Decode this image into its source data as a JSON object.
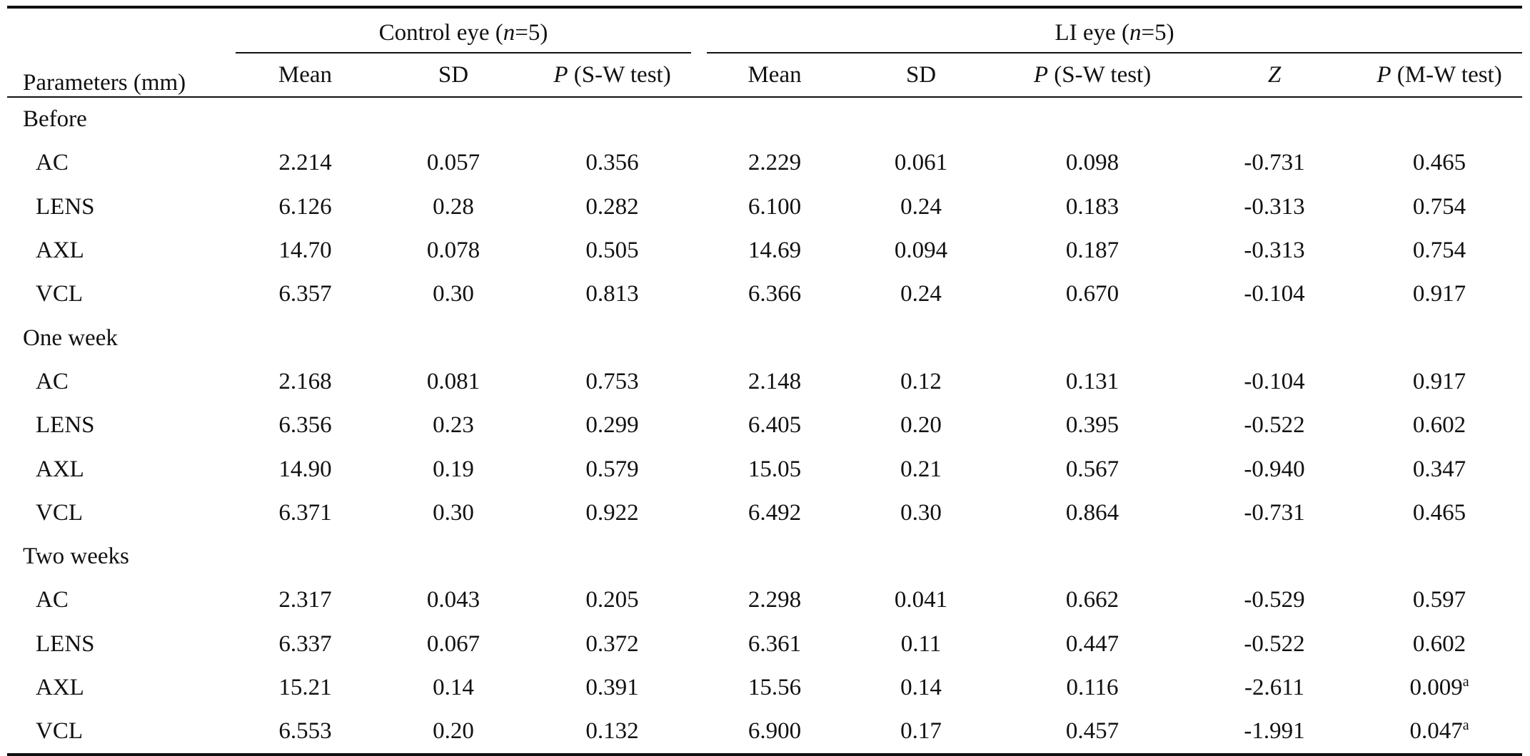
{
  "header": {
    "parameters": "Parameters (mm)",
    "control_prefix": "Control eye (",
    "control_n": "n",
    "control_suffix": "=5)",
    "li_prefix": "LI eye (",
    "li_n": "n",
    "li_suffix": "=5)",
    "columns": {
      "mean": "Mean",
      "sd": "SD",
      "p_letter": "P",
      "sw_test": " (S-W test)",
      "z": "Z",
      "mw_test": " (M-W test)"
    }
  },
  "sections": [
    {
      "title": "Before",
      "rows": [
        {
          "param": "AC",
          "c_mean": "2.214",
          "c_sd": "0.057",
          "c_p": "0.356",
          "l_mean": "2.229",
          "l_sd": "0.061",
          "l_p": "0.098",
          "z": "-0.731",
          "p_mw": "0.465",
          "sup": ""
        },
        {
          "param": "LENS",
          "c_mean": "6.126",
          "c_sd": "0.28",
          "c_p": "0.282",
          "l_mean": "6.100",
          "l_sd": "0.24",
          "l_p": "0.183",
          "z": "-0.313",
          "p_mw": "0.754",
          "sup": ""
        },
        {
          "param": "AXL",
          "c_mean": "14.70",
          "c_sd": "0.078",
          "c_p": "0.505",
          "l_mean": "14.69",
          "l_sd": "0.094",
          "l_p": "0.187",
          "z": "-0.313",
          "p_mw": "0.754",
          "sup": ""
        },
        {
          "param": "VCL",
          "c_mean": "6.357",
          "c_sd": "0.30",
          "c_p": "0.813",
          "l_mean": "6.366",
          "l_sd": "0.24",
          "l_p": "0.670",
          "z": "-0.104",
          "p_mw": "0.917",
          "sup": ""
        }
      ]
    },
    {
      "title": "One week",
      "rows": [
        {
          "param": "AC",
          "c_mean": "2.168",
          "c_sd": "0.081",
          "c_p": "0.753",
          "l_mean": "2.148",
          "l_sd": "0.12",
          "l_p": "0.131",
          "z": "-0.104",
          "p_mw": "0.917",
          "sup": ""
        },
        {
          "param": "LENS",
          "c_mean": "6.356",
          "c_sd": "0.23",
          "c_p": "0.299",
          "l_mean": "6.405",
          "l_sd": "0.20",
          "l_p": "0.395",
          "z": "-0.522",
          "p_mw": "0.602",
          "sup": ""
        },
        {
          "param": "AXL",
          "c_mean": "14.90",
          "c_sd": "0.19",
          "c_p": "0.579",
          "l_mean": "15.05",
          "l_sd": "0.21",
          "l_p": "0.567",
          "z": "-0.940",
          "p_mw": "0.347",
          "sup": ""
        },
        {
          "param": "VCL",
          "c_mean": "6.371",
          "c_sd": "0.30",
          "c_p": "0.922",
          "l_mean": "6.492",
          "l_sd": "0.30",
          "l_p": "0.864",
          "z": "-0.731",
          "p_mw": "0.465",
          "sup": ""
        }
      ]
    },
    {
      "title": "Two weeks",
      "rows": [
        {
          "param": "AC",
          "c_mean": "2.317",
          "c_sd": "0.043",
          "c_p": "0.205",
          "l_mean": "2.298",
          "l_sd": "0.041",
          "l_p": "0.662",
          "z": "-0.529",
          "p_mw": "0.597",
          "sup": ""
        },
        {
          "param": "LENS",
          "c_mean": "6.337",
          "c_sd": "0.067",
          "c_p": "0.372",
          "l_mean": "6.361",
          "l_sd": "0.11",
          "l_p": "0.447",
          "z": "-0.522",
          "p_mw": "0.602",
          "sup": ""
        },
        {
          "param": "AXL",
          "c_mean": "15.21",
          "c_sd": "0.14",
          "c_p": "0.391",
          "l_mean": "15.56",
          "l_sd": "0.14",
          "l_p": "0.116",
          "z": "-2.611",
          "p_mw": "0.009",
          "sup": "a"
        },
        {
          "param": "VCL",
          "c_mean": "6.553",
          "c_sd": "0.20",
          "c_p": "0.132",
          "l_mean": "6.900",
          "l_sd": "0.17",
          "l_p": "0.457",
          "z": "-1.991",
          "p_mw": "0.047",
          "sup": "a"
        }
      ]
    }
  ]
}
